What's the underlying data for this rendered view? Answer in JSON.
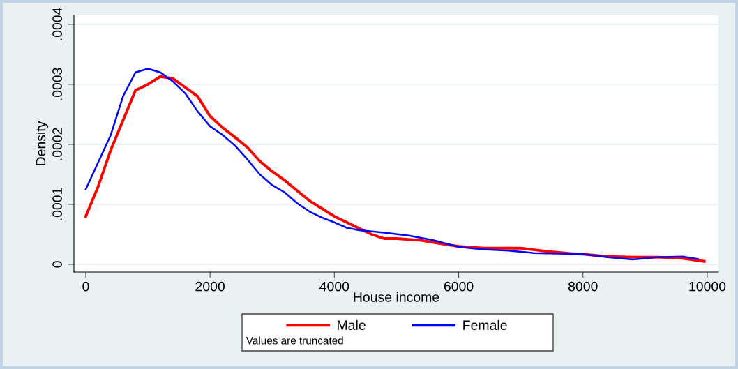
{
  "chart_data": {
    "type": "line",
    "xlabel": "House income",
    "ylabel": "Density",
    "xlim": [
      -190,
      10180
    ],
    "ylim": [
      -1.28e-05,
      0.000415
    ],
    "xticks": [
      0,
      2000,
      4000,
      6000,
      8000,
      10000
    ],
    "yticks": [
      {
        "value": 0,
        "label": "0"
      },
      {
        "value": 0.0001,
        "label": ".0001"
      },
      {
        "value": 0.0002,
        "label": ".0002"
      },
      {
        "value": 0.0003,
        "label": ".0003"
      },
      {
        "value": 0.0004,
        "label": ".0004"
      }
    ],
    "grid": "y",
    "legend": "bottom",
    "marker": "none",
    "line_style": "solid",
    "annotations": [
      "Values are truncated"
    ],
    "series": [
      {
        "name": "Male",
        "color": "#ff0000",
        "x": [
          0,
          200,
          400,
          600,
          800,
          1000,
          1200,
          1400,
          1600,
          1800,
          2000,
          2200,
          2400,
          2600,
          2800,
          3000,
          3200,
          3400,
          3600,
          3800,
          4000,
          4200,
          4400,
          4600,
          4800,
          5000,
          5400,
          5800,
          6000,
          6400,
          6800,
          7000,
          7400,
          7800,
          8000,
          8400,
          8800,
          9200,
          9600,
          9950
        ],
        "values": [
          8e-05,
          0.00013,
          0.00019,
          0.00024,
          0.00029,
          0.0003,
          0.000313,
          0.00031,
          0.000295,
          0.00028,
          0.000247,
          0.000228,
          0.000212,
          0.000195,
          0.000172,
          0.000155,
          0.00014,
          0.000123,
          0.000106,
          9.3e-05,
          8e-05,
          7e-05,
          6e-05,
          5e-05,
          4.3e-05,
          4.3e-05,
          4e-05,
          3.3e-05,
          3e-05,
          2.7e-05,
          2.7e-05,
          2.7e-05,
          2.2e-05,
          1.8e-05,
          1.7e-05,
          1.3e-05,
          1.2e-05,
          1.2e-05,
          1e-05,
          5e-06
        ]
      },
      {
        "name": "Female",
        "color": "#0000ff",
        "x": [
          0,
          200,
          400,
          600,
          800,
          1000,
          1200,
          1400,
          1600,
          1800,
          2000,
          2200,
          2400,
          2600,
          2800,
          3000,
          3200,
          3400,
          3600,
          3800,
          4000,
          4200,
          4400,
          4800,
          5200,
          5600,
          6000,
          6400,
          6800,
          7200,
          7600,
          8000,
          8400,
          8800,
          9200,
          9600,
          9850
        ],
        "values": [
          0.000125,
          0.00017,
          0.000215,
          0.00028,
          0.00032,
          0.000326,
          0.00032,
          0.000305,
          0.000285,
          0.000255,
          0.00023,
          0.000216,
          0.000198,
          0.000175,
          0.00015,
          0.000132,
          0.00012,
          0.000102,
          8.8e-05,
          7.8e-05,
          7e-05,
          6.1e-05,
          5.7e-05,
          5.3e-05,
          4.8e-05,
          4e-05,
          2.9e-05,
          2.5e-05,
          2.3e-05,
          1.9e-05,
          1.8e-05,
          1.7e-05,
          1.2e-05,
          8e-06,
          1.2e-05,
          1.3e-05,
          9e-06
        ]
      }
    ]
  }
}
